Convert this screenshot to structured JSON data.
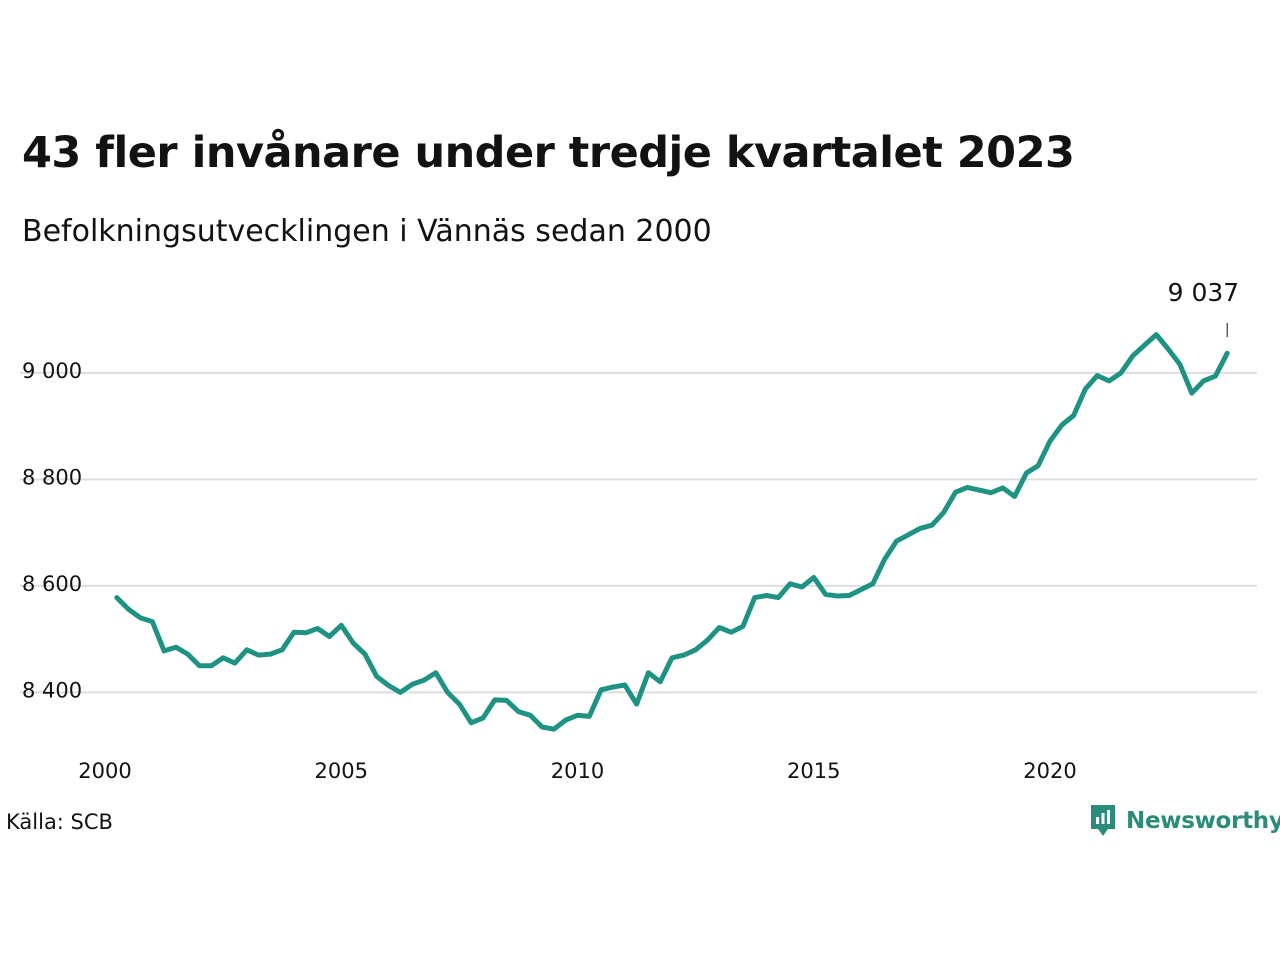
{
  "title": "43 fler invånare under tredje kvartalet 2023",
  "subtitle": "Befolkningsutvecklingen i Vännäs sedan 2000",
  "source": "Källa: SCB",
  "brand": {
    "name": "Newsworthy",
    "icon": "newsworthy-logo-icon",
    "color": "#2c8c7c"
  },
  "chart_data": {
    "type": "line",
    "line_color": "#1f9383",
    "grid": true,
    "ylim": [
      8290,
      9120
    ],
    "xlim": [
      2000,
      2024.5
    ],
    "y_ticks": [
      {
        "value": 8400,
        "label": "8 400"
      },
      {
        "value": 8600,
        "label": "8 600"
      },
      {
        "value": 8800,
        "label": "8 800"
      },
      {
        "value": 9000,
        "label": "9 000"
      }
    ],
    "x_ticks": [
      {
        "value": 2000,
        "label": "2000"
      },
      {
        "value": 2005,
        "label": "2005"
      },
      {
        "value": 2010,
        "label": "2010"
      },
      {
        "value": 2015,
        "label": "2015"
      },
      {
        "value": 2020,
        "label": "2020"
      }
    ],
    "end_label": {
      "text": "9 037"
    },
    "series": [
      {
        "x": [
          2000.25,
          2000.5,
          2000.75,
          2001.0,
          2001.25,
          2001.5,
          2001.75,
          2002.0,
          2002.25,
          2002.5,
          2002.75,
          2003.0,
          2003.25,
          2003.5,
          2003.75,
          2004.0,
          2004.25,
          2004.5,
          2004.75,
          2005.0,
          2005.25,
          2005.5,
          2005.75,
          2006.0,
          2006.25,
          2006.5,
          2006.75,
          2007.0,
          2007.25,
          2007.5,
          2007.75,
          2008.0,
          2008.25,
          2008.5,
          2008.75,
          2009.0,
          2009.25,
          2009.5,
          2009.75,
          2010.0,
          2010.25,
          2010.5,
          2010.75,
          2011.0,
          2011.25,
          2011.5,
          2011.75,
          2012.0,
          2012.25,
          2012.5,
          2012.75,
          2013.0,
          2013.25,
          2013.5,
          2013.75,
          2014.0,
          2014.25,
          2014.5,
          2014.75,
          2015.0,
          2015.25,
          2015.5,
          2015.75,
          2016.0,
          2016.25,
          2016.5,
          2016.75,
          2017.0,
          2017.25,
          2017.5,
          2017.75,
          2018.0,
          2018.25,
          2018.5,
          2018.75,
          2019.0,
          2019.25,
          2019.5,
          2019.75,
          2020.0,
          2020.25,
          2020.5,
          2020.75,
          2021.0,
          2021.25,
          2021.5,
          2021.75,
          2022.0,
          2022.25,
          2022.5,
          2022.75,
          2023.0,
          2023.25,
          2023.5,
          2023.75
        ],
        "y": [
          8578,
          8556,
          8540,
          8533,
          8478,
          8485,
          8472,
          8450,
          8450,
          8465,
          8455,
          8480,
          8470,
          8472,
          8480,
          8513,
          8512,
          8520,
          8505,
          8526,
          8493,
          8472,
          8430,
          8413,
          8400,
          8415,
          8423,
          8437,
          8400,
          8378,
          8343,
          8352,
          8386,
          8385,
          8364,
          8357,
          8335,
          8331,
          8348,
          8357,
          8355,
          8405,
          8410,
          8414,
          8378,
          8437,
          8420,
          8465,
          8470,
          8480,
          8498,
          8522,
          8513,
          8524,
          8578,
          8582,
          8578,
          8604,
          8598,
          8616,
          8584,
          8581,
          8582,
          8593,
          8604,
          8650,
          8684,
          8696,
          8708,
          8714,
          8738,
          8776,
          8785,
          8780,
          8775,
          8784,
          8768,
          8812,
          8826,
          8872,
          8902,
          8920,
          8970,
          8995,
          8985,
          9000,
          9032,
          9052,
          9072,
          9045,
          9016,
          8962,
          8985,
          8994,
          9037
        ]
      }
    ]
  }
}
